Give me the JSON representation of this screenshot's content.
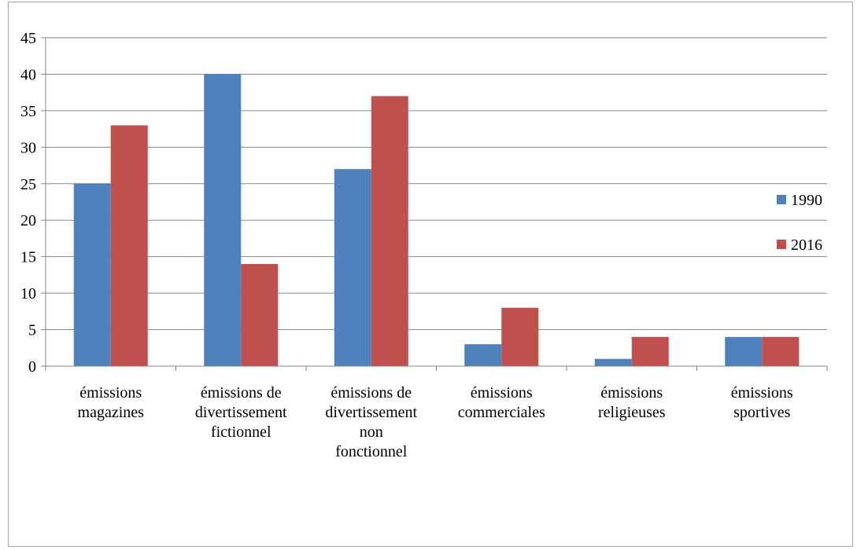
{
  "chart_data": {
    "type": "bar",
    "categories": [
      [
        "émissions",
        "magazines"
      ],
      [
        "émissions de",
        "divertissement",
        "fictionnel"
      ],
      [
        "émissions de",
        "divertissement",
        "non",
        "fonctionnel"
      ],
      [
        "émissions",
        "commerciales"
      ],
      [
        "émissions",
        "religieuses"
      ],
      [
        "émissions",
        "sportives"
      ]
    ],
    "series": [
      {
        "name": "1990",
        "color": "#4f81bd",
        "values": [
          25,
          40,
          27,
          3,
          1,
          4
        ]
      },
      {
        "name": "2016",
        "color": "#c0504d",
        "values": [
          33,
          14,
          37,
          8,
          4,
          4
        ]
      }
    ],
    "ylim": [
      0,
      45
    ],
    "yticks": [
      0,
      5,
      10,
      15,
      20,
      25,
      30,
      35,
      40,
      45
    ],
    "grid": true,
    "legend": "right"
  }
}
